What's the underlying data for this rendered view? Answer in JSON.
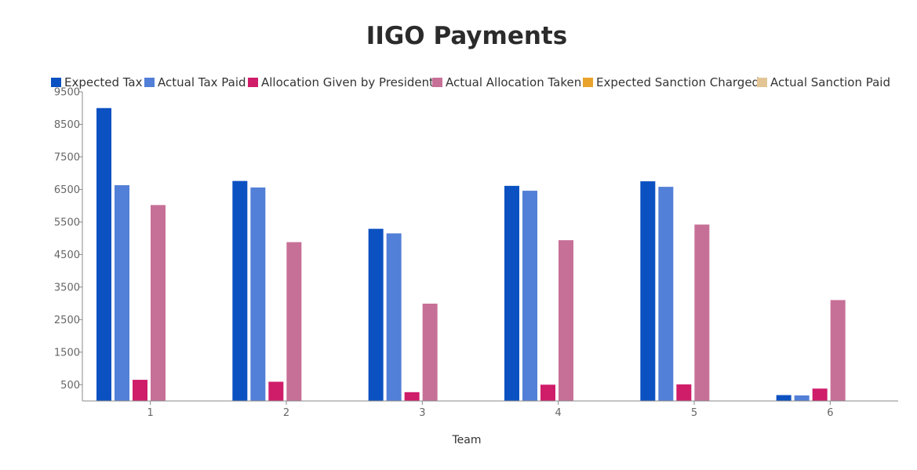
{
  "chart_data": {
    "type": "bar",
    "title": "IIGO Payments",
    "xlabel": "Team",
    "ylabel": "",
    "categories": [
      "1",
      "2",
      "3",
      "4",
      "5",
      "6"
    ],
    "ylim": [
      0,
      9500
    ],
    "yticks": [
      500,
      1500,
      2500,
      3500,
      4500,
      5500,
      6500,
      7500,
      8500,
      9500
    ],
    "grid": false,
    "legend_position": "top",
    "series": [
      {
        "name": "Expected Tax",
        "color": "#0c51c1",
        "values": [
          9000,
          6760,
          5290,
          6610,
          6750,
          180
        ]
      },
      {
        "name": "Actual Tax Paid",
        "color": "#527fd7",
        "values": [
          6630,
          6560,
          5150,
          6460,
          6580,
          170
        ]
      },
      {
        "name": "Allocation Given by President",
        "color": "#cf1d6a",
        "values": [
          650,
          590,
          270,
          500,
          510,
          380
        ]
      },
      {
        "name": "Actual Allocation Taken",
        "color": "#c77097",
        "values": [
          6020,
          4880,
          2990,
          4940,
          5420,
          3100
        ]
      },
      {
        "name": "Expected Sanction Charged",
        "color": "#eaa32a",
        "values": [
          0,
          0,
          0,
          0,
          0,
          0
        ]
      },
      {
        "name": "Actual Sanction Paid",
        "color": "#e3c595",
        "values": [
          0,
          0,
          0,
          0,
          0,
          0
        ]
      }
    ]
  }
}
